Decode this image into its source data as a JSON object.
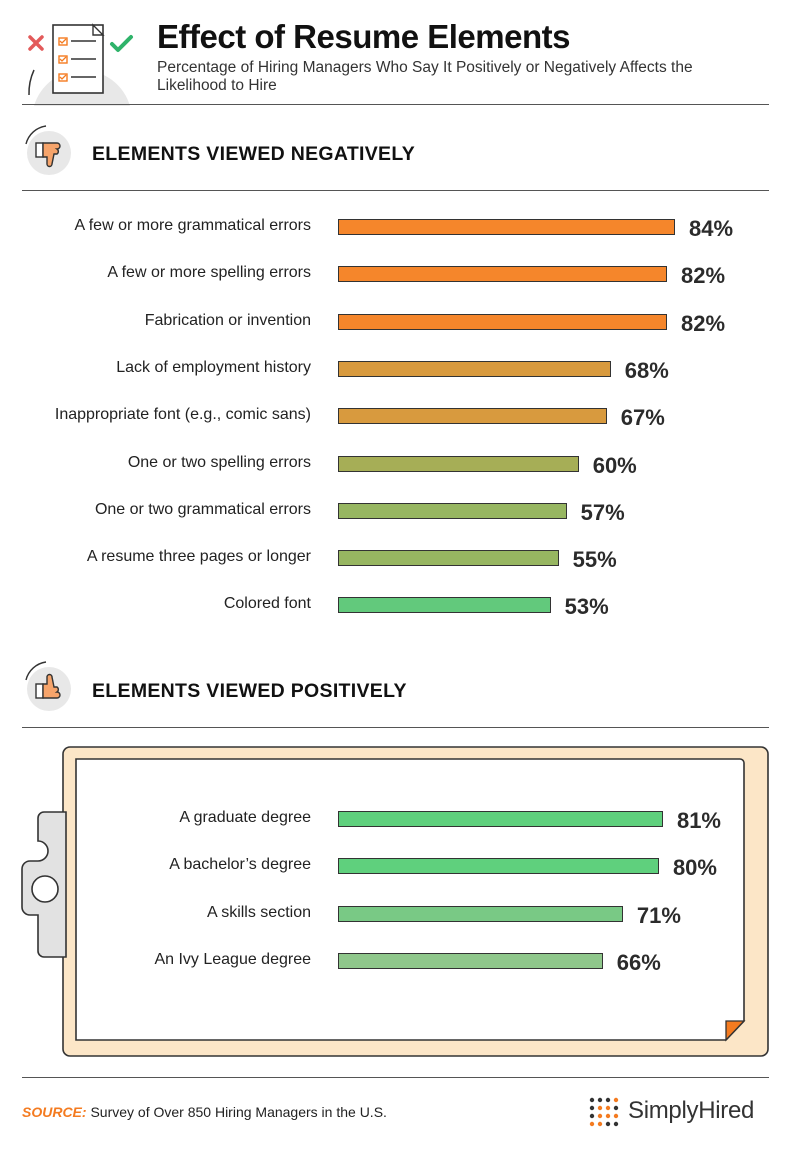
{
  "header": {
    "title": "Effect of Resume Elements",
    "subtitle": "Percentage of Hiring Managers Who Say It Positively or Negatively Affects the Likelihood to Hire",
    "icon": "resume-checklist-icon"
  },
  "sections": {
    "negative": {
      "title": "ELEMENTS VIEWED NEGATIVELY",
      "icon": "thumbs-down-icon"
    },
    "positive": {
      "title": "ELEMENTS VIEWED POSITIVELY",
      "icon": "thumbs-up-icon"
    }
  },
  "colors": {
    "orange": "#f5862b",
    "amber": "#d89a3e",
    "olive": "#a6ae56",
    "olive_green": "#97b661",
    "green": "#5fd07d",
    "light_green": "#8ccb88"
  },
  "chart_data": [
    {
      "type": "bar",
      "orientation": "horizontal",
      "title": "ELEMENTS VIEWED NEGATIVELY",
      "categories": [
        "A few or more grammatical errors",
        "A few or more spelling errors",
        "Fabrication or invention",
        "Lack of employment history",
        "Inappropriate font (e.g., comic sans)",
        "One or two spelling errors",
        "One or two grammatical errors",
        "A resume three pages or longer",
        "Colored font"
      ],
      "values": [
        84,
        82,
        82,
        68,
        67,
        60,
        57,
        55,
        53
      ],
      "labels": [
        "84%",
        "82%",
        "82%",
        "68%",
        "67%",
        "60%",
        "57%",
        "55%",
        "53%"
      ],
      "colors": [
        "#f5862b",
        "#f5862b",
        "#f5862b",
        "#d89a3e",
        "#d89a3e",
        "#a6ae56",
        "#97b661",
        "#97b661",
        "#62c97c"
      ],
      "unit": "%"
    },
    {
      "type": "bar",
      "orientation": "horizontal",
      "title": "ELEMENTS VIEWED POSITIVELY",
      "categories": [
        "A graduate degree",
        "A bachelor’s degree",
        "A skills section",
        "An Ivy League degree"
      ],
      "values": [
        81,
        80,
        71,
        66
      ],
      "labels": [
        "81%",
        "80%",
        "71%",
        "66%"
      ],
      "colors": [
        "#5fd07d",
        "#5fd07d",
        "#79c985",
        "#8fc78b"
      ],
      "unit": "%"
    }
  ],
  "footer": {
    "source_label": "SOURCE:",
    "source_text": "Survey of Over 850 Hiring Managers in the U.S.",
    "brand": "SimplyHired",
    "brand_icon": "simplyhired-logo-icon"
  }
}
